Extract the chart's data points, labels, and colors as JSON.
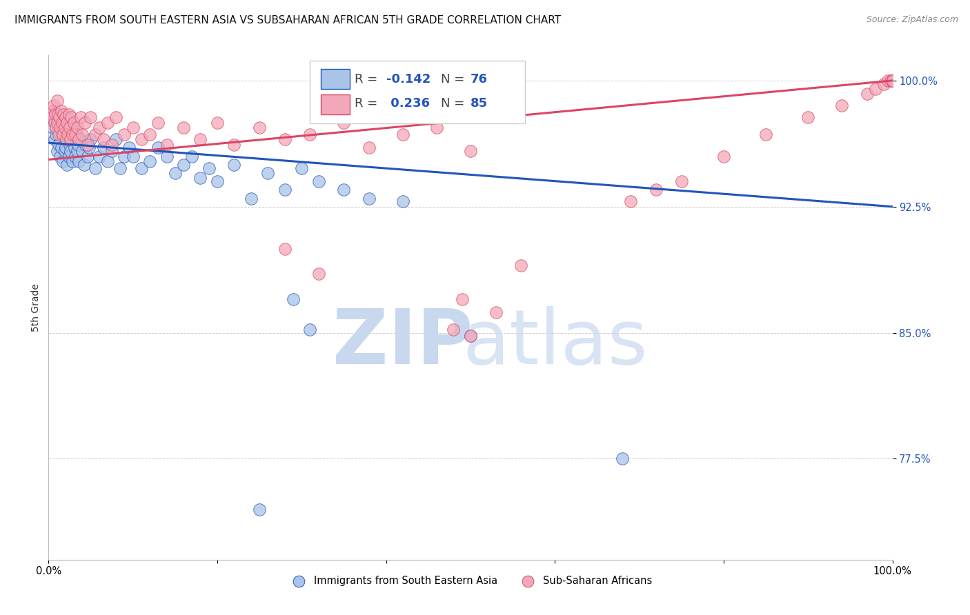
{
  "title": "IMMIGRANTS FROM SOUTH EASTERN ASIA VS SUBSAHARAN AFRICAN 5TH GRADE CORRELATION CHART",
  "source": "Source: ZipAtlas.com",
  "ylabel": "5th Grade",
  "xlim": [
    0.0,
    1.0
  ],
  "ylim": [
    0.715,
    1.015
  ],
  "blue_color": "#aac4e8",
  "pink_color": "#f2a8b8",
  "blue_line_color": "#2255bb",
  "pink_line_color": "#dd4466",
  "background_color": "#ffffff",
  "grid_color": "#cccccc",
  "blue_line_y_start": 0.963,
  "blue_line_y_end": 0.925,
  "pink_line_y_start": 0.953,
  "pink_line_y_end": 1.0,
  "blue_scatter_x": [
    0.005,
    0.006,
    0.007,
    0.008,
    0.009,
    0.01,
    0.01,
    0.011,
    0.012,
    0.013,
    0.014,
    0.015,
    0.015,
    0.016,
    0.017,
    0.018,
    0.019,
    0.02,
    0.02,
    0.021,
    0.022,
    0.023,
    0.024,
    0.025,
    0.026,
    0.027,
    0.028,
    0.029,
    0.03,
    0.031,
    0.032,
    0.033,
    0.034,
    0.035,
    0.036,
    0.038,
    0.04,
    0.042,
    0.044,
    0.046,
    0.048,
    0.05,
    0.055,
    0.06,
    0.065,
    0.07,
    0.075,
    0.08,
    0.085,
    0.09,
    0.095,
    0.1,
    0.11,
    0.12,
    0.13,
    0.14,
    0.15,
    0.16,
    0.17,
    0.18,
    0.19,
    0.2,
    0.22,
    0.24,
    0.26,
    0.28,
    0.3,
    0.32,
    0.35,
    0.38,
    0.42,
    0.5,
    0.68,
    0.29,
    0.31,
    0.25
  ],
  "blue_scatter_y": [
    0.972,
    0.978,
    0.965,
    0.981,
    0.968,
    0.975,
    0.958,
    0.97,
    0.962,
    0.978,
    0.955,
    0.972,
    0.96,
    0.968,
    0.952,
    0.975,
    0.958,
    0.972,
    0.96,
    0.965,
    0.95,
    0.968,
    0.955,
    0.962,
    0.958,
    0.975,
    0.952,
    0.965,
    0.97,
    0.96,
    0.955,
    0.968,
    0.958,
    0.962,
    0.952,
    0.965,
    0.958,
    0.95,
    0.962,
    0.955,
    0.96,
    0.965,
    0.948,
    0.955,
    0.96,
    0.952,
    0.958,
    0.965,
    0.948,
    0.955,
    0.96,
    0.955,
    0.948,
    0.952,
    0.96,
    0.955,
    0.945,
    0.95,
    0.955,
    0.942,
    0.948,
    0.94,
    0.95,
    0.93,
    0.945,
    0.935,
    0.948,
    0.94,
    0.935,
    0.93,
    0.928,
    0.848,
    0.775,
    0.87,
    0.852,
    0.745
  ],
  "pink_scatter_x": [
    0.004,
    0.005,
    0.006,
    0.007,
    0.008,
    0.009,
    0.01,
    0.01,
    0.011,
    0.012,
    0.013,
    0.014,
    0.015,
    0.016,
    0.017,
    0.018,
    0.019,
    0.02,
    0.021,
    0.022,
    0.023,
    0.024,
    0.025,
    0.026,
    0.027,
    0.028,
    0.03,
    0.032,
    0.034,
    0.036,
    0.038,
    0.04,
    0.043,
    0.046,
    0.05,
    0.055,
    0.06,
    0.065,
    0.07,
    0.075,
    0.08,
    0.09,
    0.1,
    0.11,
    0.12,
    0.13,
    0.14,
    0.16,
    0.18,
    0.2,
    0.22,
    0.25,
    0.28,
    0.31,
    0.35,
    0.38,
    0.42,
    0.46,
    0.5,
    0.28,
    0.32,
    0.48,
    0.5,
    0.49,
    0.53,
    0.56,
    0.69,
    0.72,
    0.75,
    0.8,
    0.85,
    0.9,
    0.94,
    0.97,
    0.98,
    0.99,
    0.995,
    0.998,
    1.0,
    1.0,
    1.0,
    1.0,
    1.0,
    1.0,
    1.0
  ],
  "pink_scatter_y": [
    0.982,
    0.978,
    0.985,
    0.975,
    0.98,
    0.972,
    0.988,
    0.975,
    0.98,
    0.968,
    0.978,
    0.972,
    0.982,
    0.975,
    0.968,
    0.98,
    0.972,
    0.978,
    0.965,
    0.975,
    0.968,
    0.98,
    0.972,
    0.965,
    0.978,
    0.968,
    0.975,
    0.968,
    0.972,
    0.965,
    0.978,
    0.968,
    0.975,
    0.962,
    0.978,
    0.968,
    0.972,
    0.965,
    0.975,
    0.962,
    0.978,
    0.968,
    0.972,
    0.965,
    0.968,
    0.975,
    0.962,
    0.972,
    0.965,
    0.975,
    0.962,
    0.972,
    0.965,
    0.968,
    0.975,
    0.96,
    0.968,
    0.972,
    0.958,
    0.9,
    0.885,
    0.852,
    0.848,
    0.87,
    0.862,
    0.89,
    0.928,
    0.935,
    0.94,
    0.955,
    0.968,
    0.978,
    0.985,
    0.992,
    0.995,
    0.998,
    1.0,
    1.0,
    1.0,
    1.0,
    1.0,
    1.0,
    1.0,
    1.0,
    1.0
  ]
}
